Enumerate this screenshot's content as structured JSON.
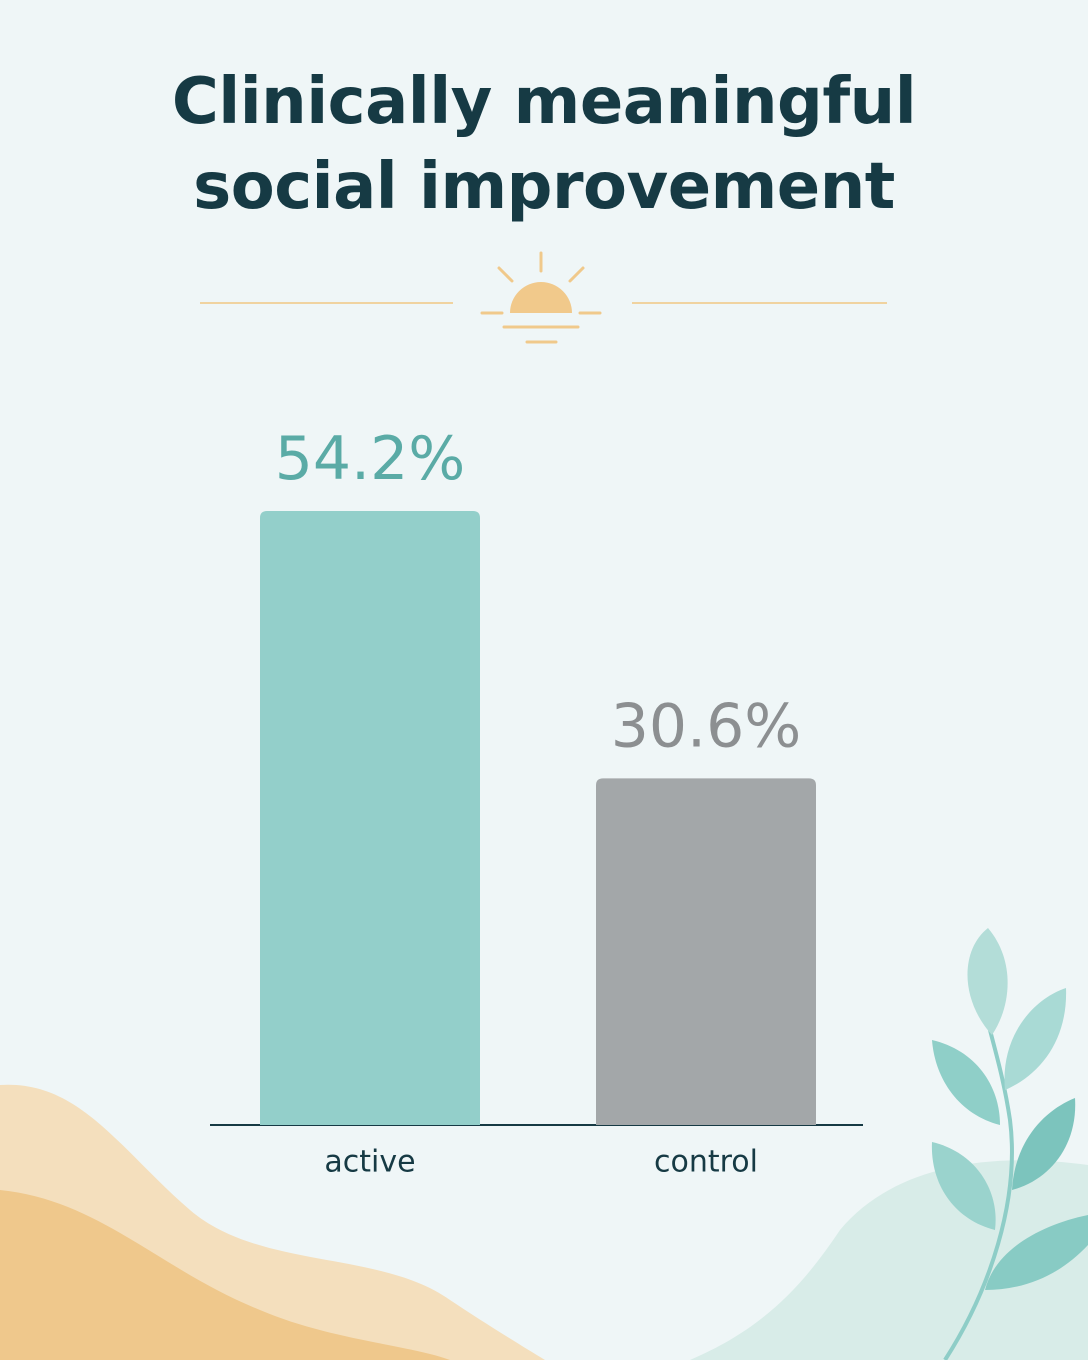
{
  "chart_data": {
    "type": "bar",
    "title": "Clinically meaningful social improvement",
    "categories": [
      "active",
      "control"
    ],
    "values": [
      54.2,
      30.6
    ],
    "value_labels": [
      "54.2%",
      "30.6%"
    ],
    "colors": [
      "#93cfca",
      "#a3a7a9"
    ]
  }
}
